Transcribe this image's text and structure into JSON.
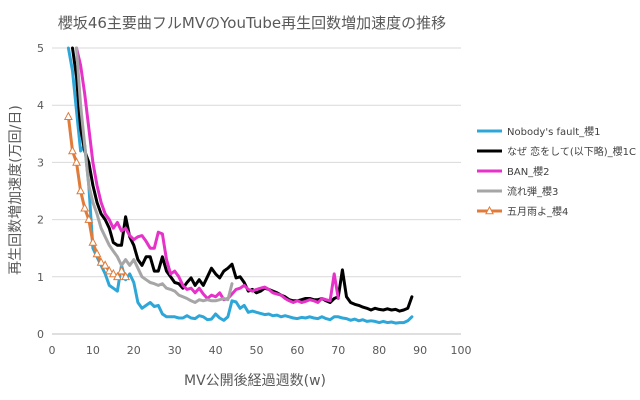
{
  "chart_data": {
    "type": "line",
    "title": "櫻坂46主要曲フルMVのYouTube再生回数増加速度の推移",
    "xlabel": "MV公開後経過週数(w)",
    "ylabel": "再生回数増加速度(万回/日)",
    "xlim": [
      0,
      100
    ],
    "ylim": [
      0,
      5
    ],
    "xticks": [
      0,
      10,
      20,
      30,
      40,
      50,
      60,
      70,
      80,
      90,
      100
    ],
    "yticks": [
      0,
      1,
      2,
      3,
      4,
      5
    ],
    "grid": "horizontal",
    "legend_position": "right",
    "series": [
      {
        "name": "Nobody's fault_櫻1",
        "color": "#2ea7d8",
        "marker": "none",
        "points": [
          [
            4,
            5.0
          ],
          [
            5,
            4.6
          ],
          [
            6,
            3.9
          ],
          [
            7,
            3.2
          ],
          [
            8,
            3.3
          ],
          [
            9,
            2.6
          ],
          [
            10,
            1.5
          ],
          [
            11,
            1.35
          ],
          [
            12,
            1.2
          ],
          [
            13,
            1.05
          ],
          [
            14,
            0.85
          ],
          [
            15,
            0.8
          ],
          [
            16,
            0.75
          ],
          [
            17,
            1.2
          ],
          [
            18,
            0.95
          ],
          [
            19,
            1.05
          ],
          [
            20,
            0.9
          ],
          [
            21,
            0.55
          ],
          [
            22,
            0.45
          ],
          [
            23,
            0.5
          ],
          [
            24,
            0.55
          ],
          [
            25,
            0.48
          ],
          [
            26,
            0.5
          ],
          [
            27,
            0.35
          ],
          [
            28,
            0.3
          ],
          [
            29,
            0.3
          ],
          [
            30,
            0.3
          ],
          [
            31,
            0.28
          ],
          [
            32,
            0.28
          ],
          [
            33,
            0.32
          ],
          [
            34,
            0.28
          ],
          [
            35,
            0.27
          ],
          [
            36,
            0.32
          ],
          [
            37,
            0.3
          ],
          [
            38,
            0.25
          ],
          [
            39,
            0.26
          ],
          [
            40,
            0.35
          ],
          [
            41,
            0.28
          ],
          [
            42,
            0.24
          ],
          [
            43,
            0.3
          ],
          [
            44,
            0.58
          ],
          [
            45,
            0.56
          ],
          [
            46,
            0.45
          ],
          [
            47,
            0.5
          ],
          [
            48,
            0.38
          ],
          [
            49,
            0.4
          ],
          [
            50,
            0.38
          ],
          [
            51,
            0.36
          ],
          [
            52,
            0.34
          ],
          [
            53,
            0.35
          ],
          [
            54,
            0.32
          ],
          [
            55,
            0.33
          ],
          [
            56,
            0.3
          ],
          [
            57,
            0.32
          ],
          [
            58,
            0.3
          ],
          [
            59,
            0.28
          ],
          [
            60,
            0.27
          ],
          [
            61,
            0.29
          ],
          [
            62,
            0.28
          ],
          [
            63,
            0.3
          ],
          [
            64,
            0.28
          ],
          [
            65,
            0.27
          ],
          [
            66,
            0.3
          ],
          [
            67,
            0.27
          ],
          [
            68,
            0.25
          ],
          [
            69,
            0.3
          ],
          [
            70,
            0.3
          ],
          [
            71,
            0.28
          ],
          [
            72,
            0.27
          ],
          [
            73,
            0.24
          ],
          [
            74,
            0.26
          ],
          [
            75,
            0.23
          ],
          [
            76,
            0.25
          ],
          [
            77,
            0.22
          ],
          [
            78,
            0.23
          ],
          [
            79,
            0.22
          ],
          [
            80,
            0.2
          ],
          [
            81,
            0.22
          ],
          [
            82,
            0.2
          ],
          [
            83,
            0.21
          ],
          [
            84,
            0.19
          ],
          [
            85,
            0.2
          ],
          [
            86,
            0.2
          ],
          [
            87,
            0.23
          ],
          [
            88,
            0.3
          ]
        ]
      },
      {
        "name": "なぜ 恋をして(以下略)_櫻1C",
        "color": "#000000",
        "marker": "none",
        "points": [
          [
            5,
            5.0
          ],
          [
            6,
            4.5
          ],
          [
            7,
            3.6
          ],
          [
            8,
            3.2
          ],
          [
            9,
            3.0
          ],
          [
            10,
            2.6
          ],
          [
            11,
            2.3
          ],
          [
            12,
            2.1
          ],
          [
            13,
            2.0
          ],
          [
            14,
            1.85
          ],
          [
            15,
            1.6
          ],
          [
            16,
            1.55
          ],
          [
            17,
            1.55
          ],
          [
            18,
            2.05
          ],
          [
            19,
            1.7
          ],
          [
            20,
            1.55
          ],
          [
            21,
            1.3
          ],
          [
            22,
            1.2
          ],
          [
            23,
            1.35
          ],
          [
            24,
            1.35
          ],
          [
            25,
            1.1
          ],
          [
            26,
            1.1
          ],
          [
            27,
            1.35
          ],
          [
            28,
            1.1
          ],
          [
            29,
            1.0
          ],
          [
            30,
            0.9
          ],
          [
            31,
            0.88
          ],
          [
            32,
            0.8
          ],
          [
            33,
            0.9
          ],
          [
            34,
            0.98
          ],
          [
            35,
            0.85
          ],
          [
            36,
            0.95
          ],
          [
            37,
            0.85
          ],
          [
            38,
            1.0
          ],
          [
            39,
            1.15
          ],
          [
            40,
            1.05
          ],
          [
            41,
            0.98
          ],
          [
            42,
            1.1
          ],
          [
            43,
            1.15
          ],
          [
            44,
            1.22
          ],
          [
            45,
            0.98
          ],
          [
            46,
            1.0
          ],
          [
            47,
            0.9
          ],
          [
            48,
            0.75
          ],
          [
            49,
            0.78
          ],
          [
            50,
            0.72
          ],
          [
            51,
            0.75
          ],
          [
            52,
            0.8
          ],
          [
            53,
            0.78
          ],
          [
            54,
            0.75
          ],
          [
            55,
            0.72
          ],
          [
            56,
            0.68
          ],
          [
            57,
            0.65
          ],
          [
            58,
            0.6
          ],
          [
            59,
            0.58
          ],
          [
            60,
            0.58
          ],
          [
            61,
            0.6
          ],
          [
            62,
            0.62
          ],
          [
            63,
            0.62
          ],
          [
            64,
            0.6
          ],
          [
            65,
            0.6
          ],
          [
            66,
            0.62
          ],
          [
            67,
            0.58
          ],
          [
            68,
            0.55
          ],
          [
            69,
            0.62
          ],
          [
            70,
            0.65
          ],
          [
            71,
            1.12
          ],
          [
            72,
            0.65
          ],
          [
            73,
            0.55
          ],
          [
            74,
            0.52
          ],
          [
            75,
            0.5
          ],
          [
            76,
            0.47
          ],
          [
            77,
            0.45
          ],
          [
            78,
            0.42
          ],
          [
            79,
            0.45
          ],
          [
            80,
            0.43
          ],
          [
            81,
            0.42
          ],
          [
            82,
            0.44
          ],
          [
            83,
            0.42
          ],
          [
            84,
            0.43
          ],
          [
            85,
            0.4
          ],
          [
            86,
            0.42
          ],
          [
            87,
            0.45
          ],
          [
            88,
            0.65
          ]
        ]
      },
      {
        "name": "BAN_櫻2",
        "color": "#e632c8",
        "marker": "none",
        "points": [
          [
            6,
            5.0
          ],
          [
            7,
            4.7
          ],
          [
            8,
            4.2
          ],
          [
            9,
            3.6
          ],
          [
            10,
            3.0
          ],
          [
            11,
            2.6
          ],
          [
            12,
            2.3
          ],
          [
            13,
            2.1
          ],
          [
            14,
            2.0
          ],
          [
            15,
            1.85
          ],
          [
            16,
            1.95
          ],
          [
            17,
            1.8
          ],
          [
            18,
            1.85
          ],
          [
            19,
            1.72
          ],
          [
            20,
            1.65
          ],
          [
            21,
            1.7
          ],
          [
            22,
            1.72
          ],
          [
            23,
            1.62
          ],
          [
            24,
            1.5
          ],
          [
            25,
            1.5
          ],
          [
            26,
            1.78
          ],
          [
            27,
            1.75
          ],
          [
            28,
            1.3
          ],
          [
            29,
            1.05
          ],
          [
            30,
            1.1
          ],
          [
            31,
            1.0
          ],
          [
            32,
            0.85
          ],
          [
            33,
            0.78
          ],
          [
            34,
            0.8
          ],
          [
            35,
            0.72
          ],
          [
            36,
            0.8
          ],
          [
            37,
            0.7
          ],
          [
            38,
            0.62
          ],
          [
            39,
            0.68
          ],
          [
            40,
            0.65
          ],
          [
            41,
            0.72
          ],
          [
            42,
            0.6
          ],
          [
            43,
            0.62
          ],
          [
            44,
            0.7
          ],
          [
            45,
            0.78
          ],
          [
            46,
            0.8
          ],
          [
            47,
            0.85
          ],
          [
            48,
            0.78
          ],
          [
            49,
            0.75
          ],
          [
            50,
            0.78
          ],
          [
            51,
            0.8
          ],
          [
            52,
            0.82
          ],
          [
            53,
            0.78
          ],
          [
            54,
            0.72
          ],
          [
            55,
            0.7
          ],
          [
            56,
            0.68
          ],
          [
            57,
            0.62
          ],
          [
            58,
            0.58
          ],
          [
            59,
            0.55
          ],
          [
            60,
            0.58
          ],
          [
            61,
            0.55
          ],
          [
            62,
            0.57
          ],
          [
            63,
            0.6
          ],
          [
            64,
            0.58
          ],
          [
            65,
            0.55
          ],
          [
            66,
            0.62
          ],
          [
            67,
            0.6
          ],
          [
            68,
            0.58
          ],
          [
            69,
            1.05
          ],
          [
            70,
            0.62
          ]
        ]
      },
      {
        "name": "流れ弾_櫻3",
        "color": "#a6a6a6",
        "marker": "none",
        "points": [
          [
            6,
            5.0
          ],
          [
            7,
            4.0
          ],
          [
            8,
            3.3
          ],
          [
            9,
            2.6
          ],
          [
            10,
            2.3
          ],
          [
            11,
            2.1
          ],
          [
            12,
            1.85
          ],
          [
            13,
            1.7
          ],
          [
            14,
            1.55
          ],
          [
            15,
            1.45
          ],
          [
            16,
            1.35
          ],
          [
            17,
            1.2
          ],
          [
            18,
            1.3
          ],
          [
            19,
            1.2
          ],
          [
            20,
            1.3
          ],
          [
            21,
            1.15
          ],
          [
            22,
            1.0
          ],
          [
            23,
            0.95
          ],
          [
            24,
            0.9
          ],
          [
            25,
            0.88
          ],
          [
            26,
            0.85
          ],
          [
            27,
            0.88
          ],
          [
            28,
            0.8
          ],
          [
            29,
            0.78
          ],
          [
            30,
            0.75
          ],
          [
            31,
            0.68
          ],
          [
            32,
            0.65
          ],
          [
            33,
            0.62
          ],
          [
            34,
            0.58
          ],
          [
            35,
            0.55
          ],
          [
            36,
            0.6
          ],
          [
            37,
            0.58
          ],
          [
            38,
            0.6
          ],
          [
            39,
            0.58
          ],
          [
            40,
            0.58
          ],
          [
            41,
            0.6
          ],
          [
            42,
            0.62
          ],
          [
            43,
            0.6
          ],
          [
            44,
            0.88
          ]
        ]
      },
      {
        "name": "五月雨よ_櫻4",
        "color": "#e07b39",
        "marker": "triangle",
        "points": [
          [
            4,
            3.8
          ],
          [
            5,
            3.2
          ],
          [
            6,
            3.0
          ],
          [
            7,
            2.5
          ],
          [
            8,
            2.2
          ],
          [
            9,
            2.0
          ],
          [
            10,
            1.6
          ],
          [
            11,
            1.4
          ],
          [
            12,
            1.25
          ],
          [
            13,
            1.2
          ],
          [
            14,
            1.1
          ],
          [
            15,
            1.05
          ],
          [
            16,
            1.0
          ],
          [
            17,
            1.1
          ],
          [
            18,
            1.0
          ]
        ]
      }
    ]
  }
}
